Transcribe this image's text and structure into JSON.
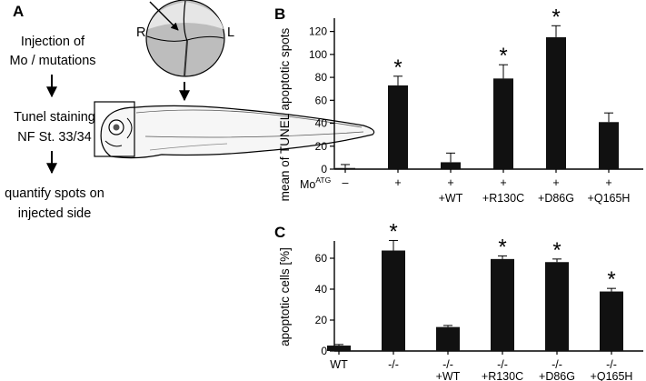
{
  "panel_a": {
    "letter": "A",
    "flow_step1": [
      "Injection of",
      "Mo / mutations"
    ],
    "flow_step2": [
      "Tunel staining",
      "NF St. 33/34"
    ],
    "flow_step3": [
      "quantify spots on",
      "injected side"
    ],
    "embryo_right": "R",
    "embryo_left": "L"
  },
  "chart_data": [
    {
      "type": "bar",
      "panel": "B",
      "ylabel": "mean of TUNEL apoptotic spots",
      "ylim": [
        0,
        130
      ],
      "yticks": [
        "0",
        "20",
        "40",
        "60",
        "80",
        "100",
        "120"
      ],
      "row_label_main": "Mo",
      "row_label_sup": "ATG",
      "row1": [
        "–",
        "+",
        "+",
        "+",
        "+",
        "+"
      ],
      "row2": [
        "",
        "",
        "+WT",
        "+R130C",
        "+D86G",
        "+Q165H"
      ],
      "values": [
        1,
        73,
        6,
        79,
        115,
        41
      ],
      "errors": [
        3,
        8,
        8,
        12,
        10,
        8
      ],
      "significant": [
        "",
        "*",
        "",
        "*",
        "*",
        ""
      ]
    },
    {
      "type": "bar",
      "panel": "C",
      "ylabel": "apoptotic cells [%]",
      "ylim": [
        0,
        70
      ],
      "yticks": [
        "0",
        "20",
        "40",
        "60"
      ],
      "row1": [
        "WT",
        "-/-",
        "-/-",
        "-/-",
        "-/-",
        "-/-"
      ],
      "row2": [
        "",
        "",
        "+WT",
        "+R130C",
        "+D86G",
        "+Q165H"
      ],
      "values": [
        3.5,
        65,
        15.5,
        59.5,
        57.5,
        38.5
      ],
      "errors": [
        0.7,
        6.5,
        1,
        2,
        2,
        2
      ],
      "significant": [
        "",
        "*",
        "",
        "*",
        "*",
        "*"
      ]
    }
  ]
}
